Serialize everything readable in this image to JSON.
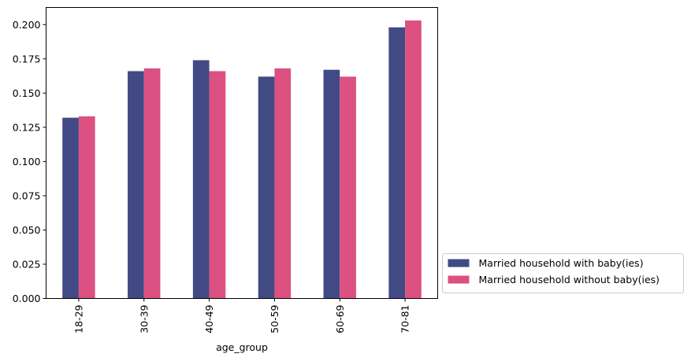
{
  "chart_data": {
    "type": "bar",
    "title": "",
    "xlabel": "age_group",
    "ylabel": "",
    "categories": [
      "18-29",
      "30-39",
      "40-49",
      "50-59",
      "60-69",
      "70-81"
    ],
    "series": [
      {
        "name": "Married household with baby(ies)",
        "color": "#414a84",
        "values": [
          0.132,
          0.166,
          0.174,
          0.162,
          0.167,
          0.198
        ]
      },
      {
        "name": "Married household without baby(ies)",
        "color": "#dc5082",
        "values": [
          0.133,
          0.168,
          0.166,
          0.168,
          0.162,
          0.203
        ]
      }
    ],
    "ylim": [
      0,
      0.2125
    ],
    "yticks": [
      0.0,
      0.025,
      0.05,
      0.075,
      0.1,
      0.125,
      0.15,
      0.175,
      0.2
    ],
    "ytick_labels": [
      "0.000",
      "0.025",
      "0.050",
      "0.075",
      "0.100",
      "0.125",
      "0.150",
      "0.175",
      "0.200"
    ],
    "grid": false,
    "legend_position": "lower-right-outside"
  }
}
